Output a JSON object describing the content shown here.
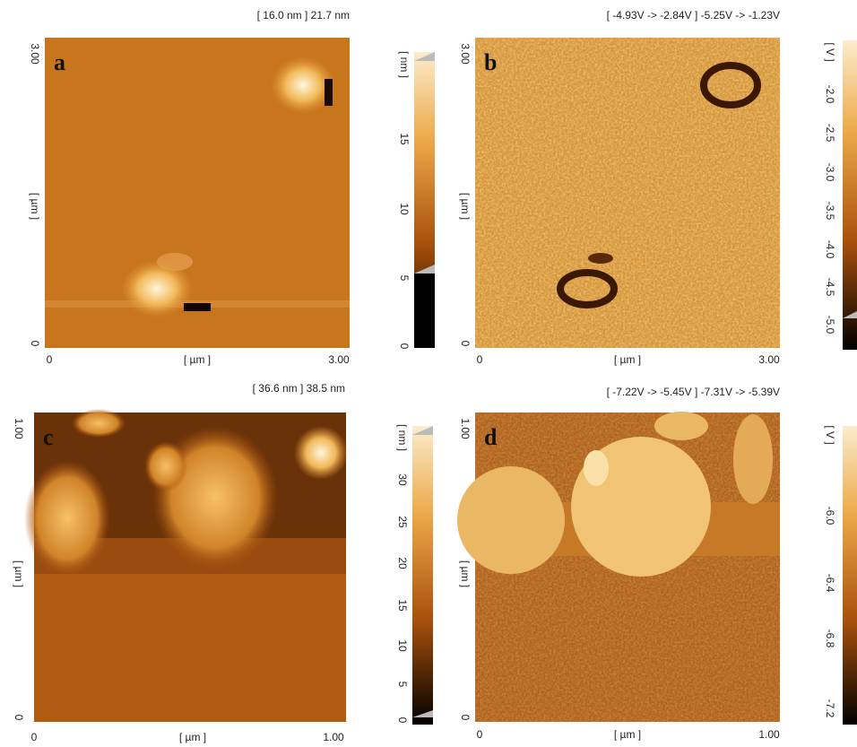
{
  "panels": [
    {
      "letter": "a",
      "header": "[ 16.0 nm ] 21.7 nm",
      "y_ticks": [
        "3.00",
        "0"
      ],
      "y_label": "[ µm ]",
      "x_ticks": [
        "0",
        "3.00"
      ],
      "x_label": "[ µm ]",
      "colorbar_label": "[ nm ]",
      "colorbar_ticks": [
        "15",
        "10",
        "5",
        "0"
      ]
    },
    {
      "letter": "b",
      "header": "[ -4.93V  ->  -2.84V ] -5.25V  ->  -1.23V",
      "y_ticks": [
        "3.00",
        "0"
      ],
      "y_label": "[ µm ]",
      "x_ticks": [
        "0",
        "3.00"
      ],
      "x_label": "[ µm ]",
      "colorbar_label": "[ V ]",
      "colorbar_ticks": [
        "-2.0",
        "-2.5",
        "-3.0",
        "-3.5",
        "-4.0",
        "-4.5",
        "-5.0"
      ]
    },
    {
      "letter": "c",
      "header": "[ 36.6 nm ] 38.5 nm",
      "y_ticks": [
        "1.00",
        "0"
      ],
      "y_label": "[ µm ]",
      "x_ticks": [
        "0",
        "1.00"
      ],
      "x_label": "[ µm ]",
      "colorbar_label": "[ nm ]",
      "colorbar_ticks": [
        "30",
        "25",
        "20",
        "15",
        "10",
        "5",
        "0"
      ]
    },
    {
      "letter": "d",
      "header": "[ -7.22V  ->  -5.45V ] -7.31V  ->  -5.39V",
      "y_ticks": [
        "1.00",
        "0"
      ],
      "y_label": "[ µm ]",
      "x_ticks": [
        "0",
        "1.00"
      ],
      "x_label": "[ µm ]",
      "colorbar_label": "[ V ]",
      "colorbar_ticks": [
        "-6.0",
        "-6.4",
        "-6.8",
        "-7.2"
      ]
    }
  ]
}
